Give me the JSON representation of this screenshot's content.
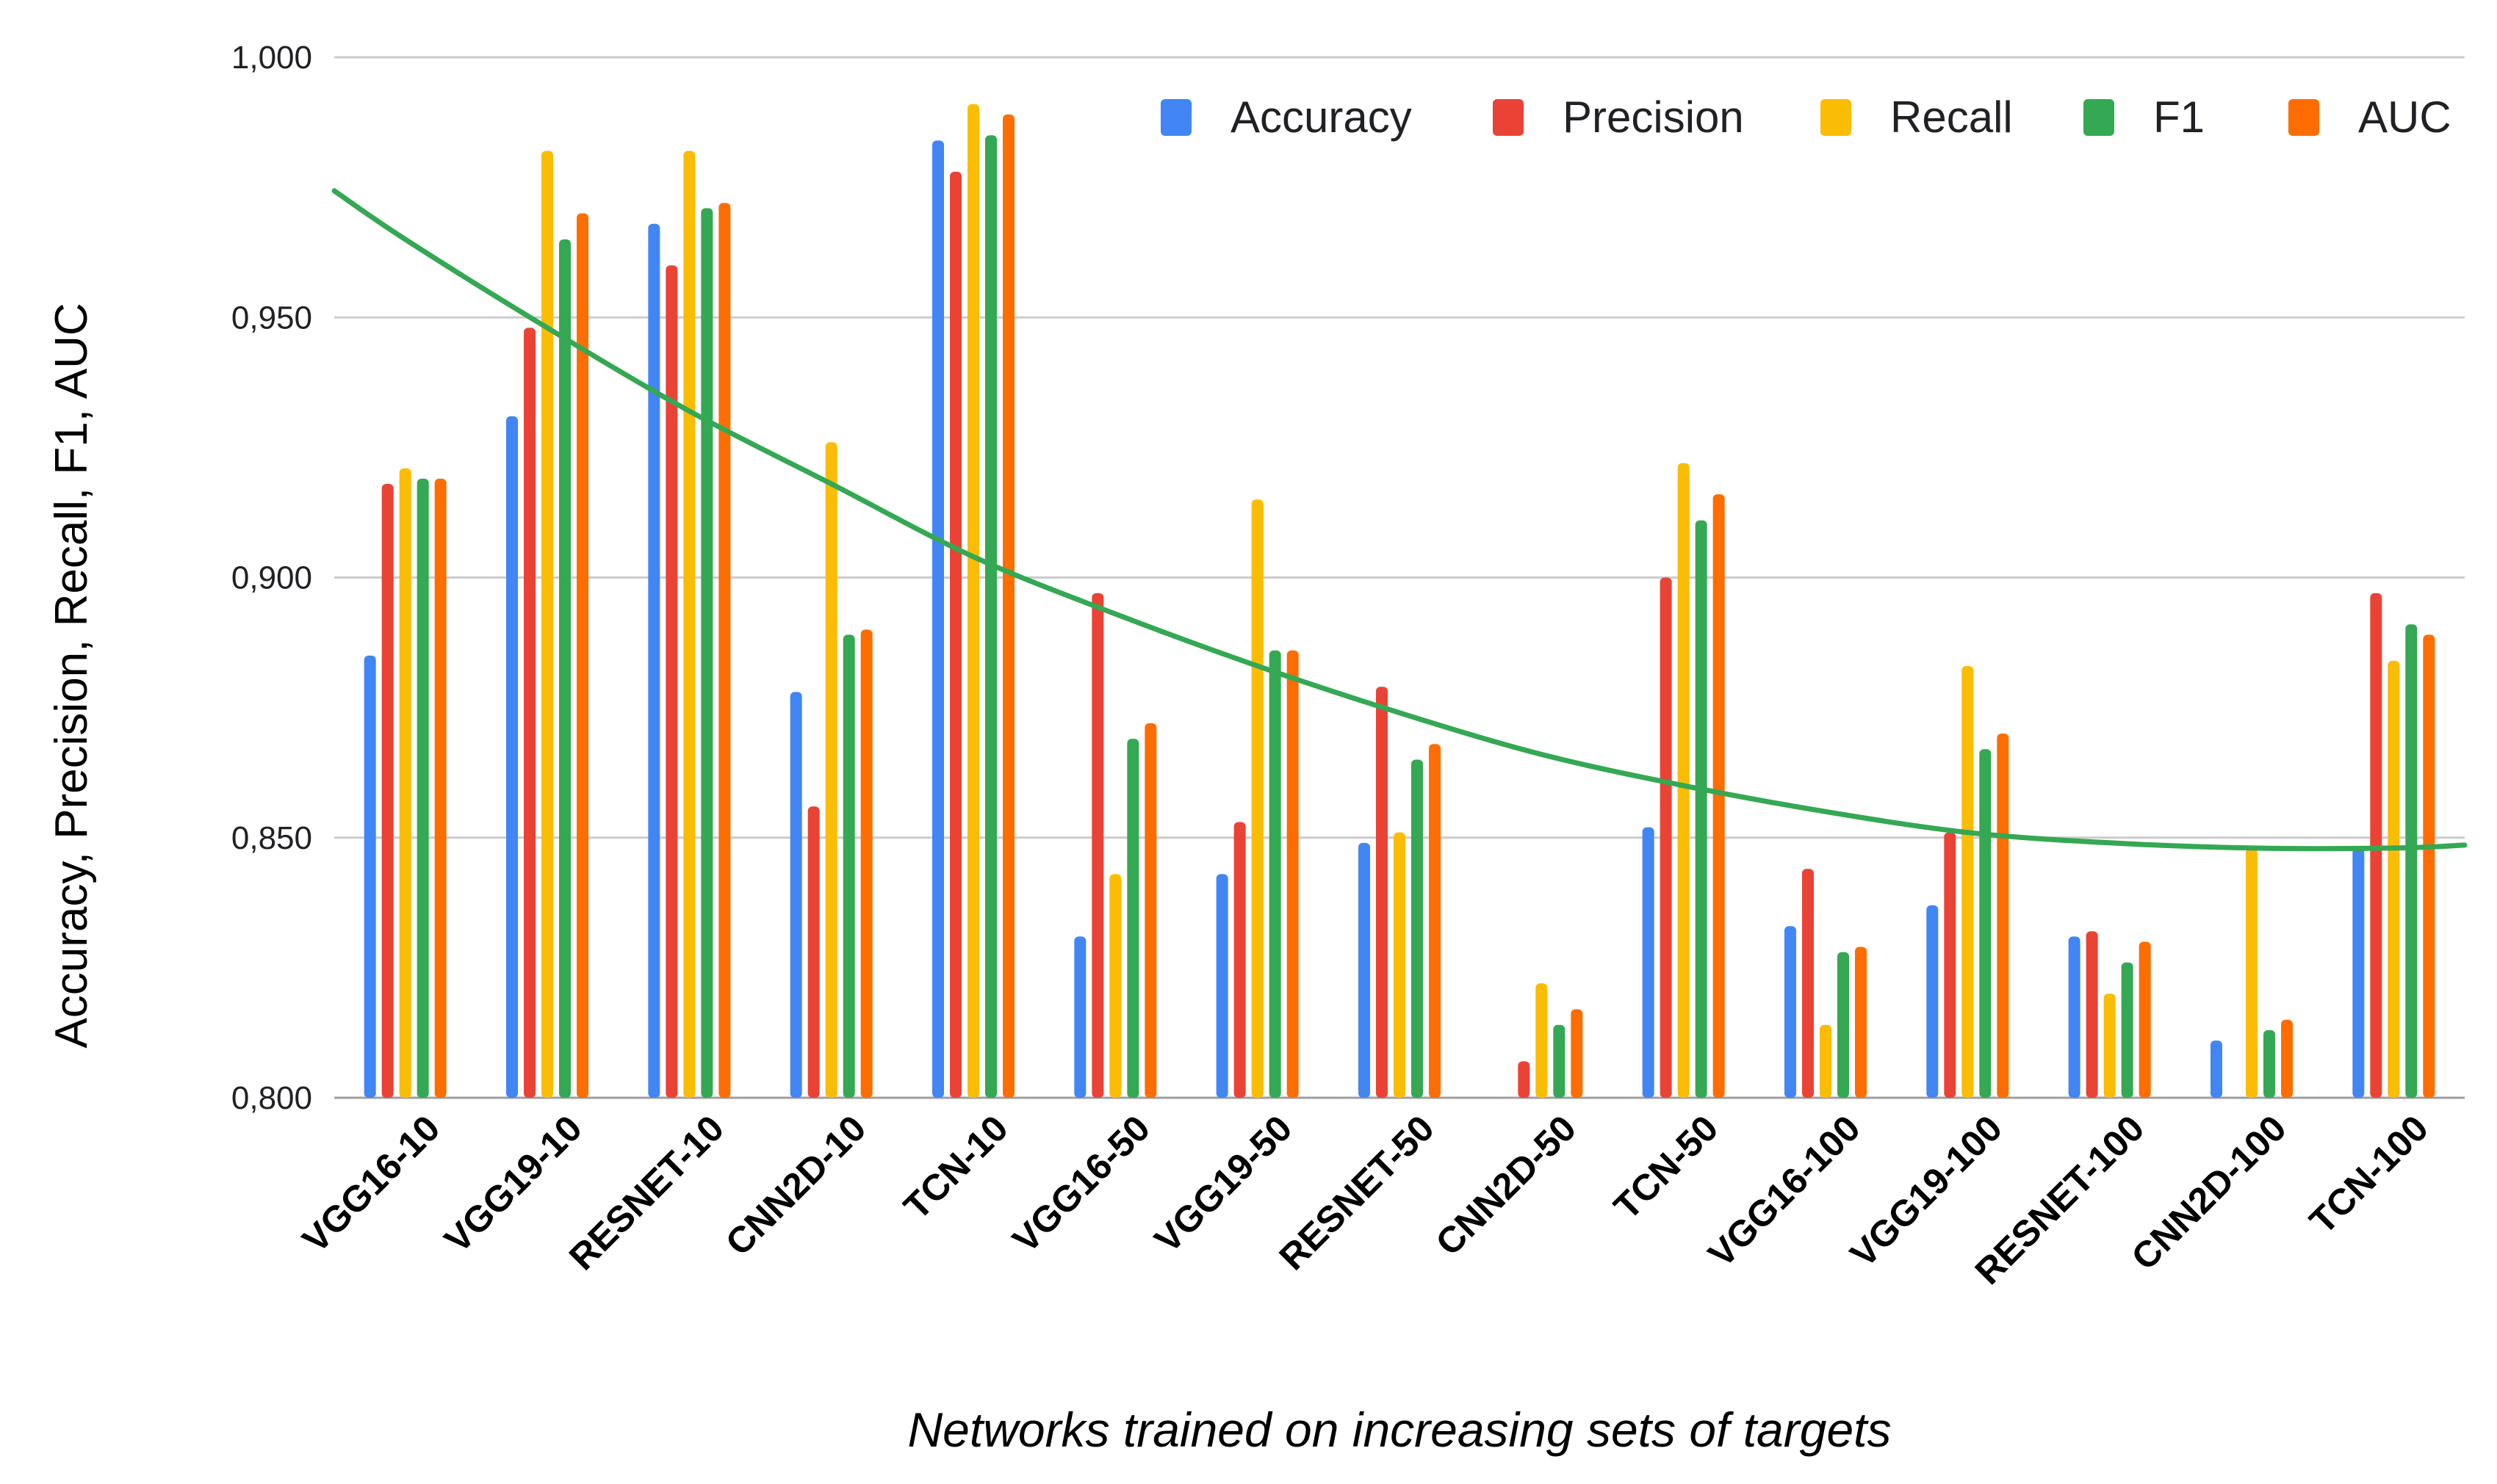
{
  "chart_data": {
    "type": "bar",
    "title": "",
    "xlabel": "Networks trained on increasing sets of targets",
    "ylabel": "Accuracy, Precision, Recall, F1, AUC",
    "ylim": [
      0.8,
      1.0
    ],
    "yticks": [
      {
        "value": 0.8,
        "label": "0,800"
      },
      {
        "value": 0.85,
        "label": "0,850"
      },
      {
        "value": 0.9,
        "label": "0,900"
      },
      {
        "value": 0.95,
        "label": "0,950"
      },
      {
        "value": 1.0,
        "label": "1,000"
      }
    ],
    "grid": true,
    "legend_position": "top-right",
    "categories": [
      "VGG16-10",
      "VGG19-10",
      "RESNET-10",
      "CNN2D-10",
      "TCN-10",
      "VGG16-50",
      "VGG19-50",
      "RESNET-50",
      "CNN2D-50",
      "TCN-50",
      "VGG16-100",
      "VGG19-100",
      "RESNET-100",
      "CNN2D-100",
      "TCN-100"
    ],
    "series": [
      {
        "name": "Accuracy",
        "color": "#4285f4",
        "values": [
          0.885,
          0.931,
          0.968,
          0.878,
          0.984,
          0.831,
          0.843,
          0.849,
          0.799,
          0.852,
          0.833,
          0.837,
          0.831,
          0.811,
          0.848
        ]
      },
      {
        "name": "Precision",
        "color": "#ea4335",
        "values": [
          0.918,
          0.948,
          0.96,
          0.856,
          0.978,
          0.897,
          0.853,
          0.879,
          0.807,
          0.9,
          0.844,
          0.851,
          0.832,
          0.799,
          0.897
        ]
      },
      {
        "name": "Recall",
        "color": "#fbbc04",
        "values": [
          0.921,
          0.982,
          0.982,
          0.926,
          0.991,
          0.843,
          0.915,
          0.851,
          0.822,
          0.922,
          0.814,
          0.883,
          0.82,
          0.848,
          0.884
        ]
      },
      {
        "name": "F1",
        "color": "#34a853",
        "values": [
          0.919,
          0.965,
          0.971,
          0.889,
          0.985,
          0.869,
          0.886,
          0.865,
          0.814,
          0.911,
          0.828,
          0.867,
          0.826,
          0.813,
          0.891
        ]
      },
      {
        "name": "AUC",
        "color": "#ff6d01",
        "values": [
          0.919,
          0.97,
          0.972,
          0.89,
          0.989,
          0.872,
          0.886,
          0.868,
          0.817,
          0.916,
          0.829,
          0.87,
          0.83,
          0.815,
          0.889
        ]
      }
    ],
    "trendline": {
      "type": "polynomial",
      "color": "#34a853",
      "values_at_categories": [
        0.965,
        0.948,
        0.932,
        0.918,
        0.904,
        0.893,
        0.883,
        0.874,
        0.866,
        0.86,
        0.855,
        0.851,
        0.849,
        0.848,
        0.848
      ]
    }
  }
}
